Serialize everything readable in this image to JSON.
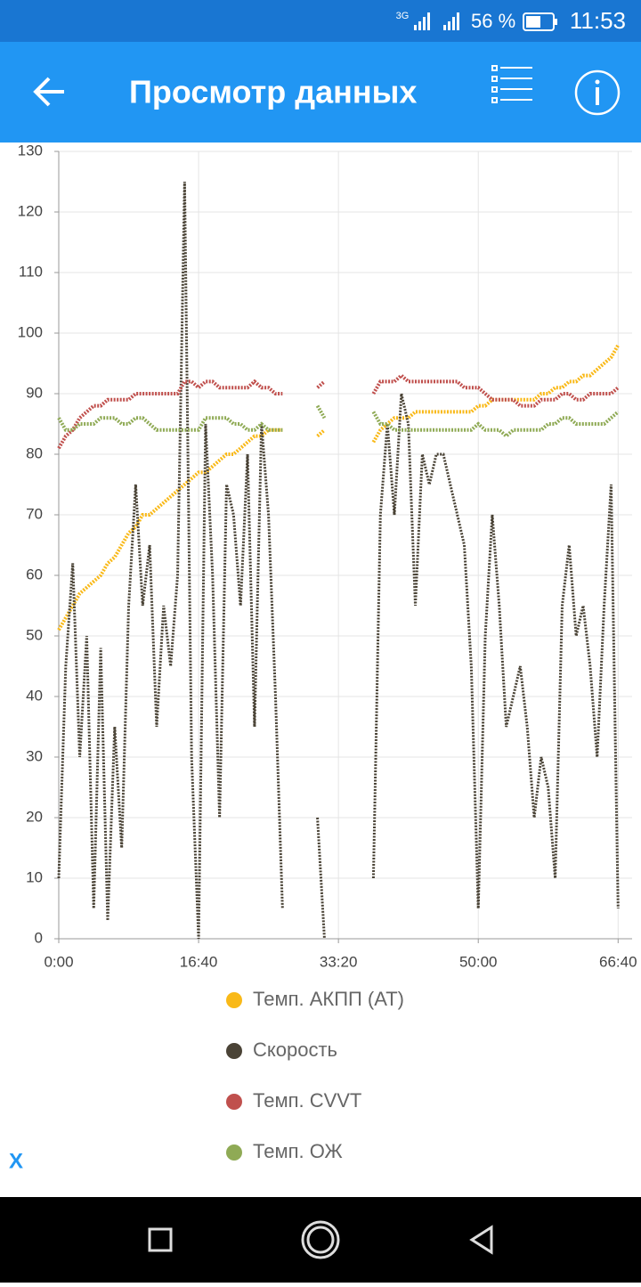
{
  "status_bar": {
    "network": "3G",
    "battery": "56 %",
    "time": "11:53"
  },
  "app_bar": {
    "title": "Просмотр данных"
  },
  "chart_data": {
    "type": "line",
    "x": [
      0,
      50,
      100,
      150,
      200,
      250,
      300,
      350,
      400,
      450,
      500,
      550,
      600,
      650,
      700,
      750,
      800,
      850,
      900,
      950,
      1000,
      1050,
      1100,
      1150,
      1200,
      1250,
      1300,
      1350,
      1400,
      1450,
      1500,
      1550,
      1600,
      1650,
      1700,
      1750,
      1800,
      1850,
      1900,
      1950,
      2000,
      2050,
      2100,
      2150,
      2200,
      2250,
      2300,
      2350,
      2400,
      2450,
      2500,
      2550,
      2600,
      2650,
      2700,
      2750,
      2800,
      2850,
      2900,
      2950,
      3000,
      3050,
      3100,
      3150,
      3200,
      3250,
      3300,
      3350,
      3400,
      3450,
      3500,
      3550,
      3600,
      3650,
      3700,
      3750,
      3800,
      3850,
      3900,
      3950,
      4000
    ],
    "series": [
      {
        "name": "Темп. АКПП (АТ)",
        "color": "#f9b918",
        "values": [
          51,
          53,
          55,
          57,
          58,
          59,
          60,
          62,
          63,
          65,
          67,
          68,
          70,
          70,
          71,
          72,
          73,
          74,
          75,
          76,
          77,
          77,
          78,
          79,
          80,
          80,
          81,
          82,
          83,
          83,
          84,
          84,
          84,
          null,
          null,
          null,
          null,
          83,
          84,
          null,
          null,
          null,
          null,
          null,
          null,
          82,
          84,
          85,
          86,
          86,
          86,
          87,
          87,
          87,
          87,
          87,
          87,
          87,
          87,
          87,
          88,
          88,
          89,
          89,
          89,
          89,
          89,
          89,
          89,
          90,
          90,
          91,
          91,
          92,
          92,
          93,
          93,
          94,
          95,
          96,
          98
        ]
      },
      {
        "name": "Скорость",
        "color": "#4a4336",
        "values": [
          10,
          45,
          62,
          30,
          50,
          5,
          48,
          3,
          35,
          15,
          55,
          75,
          55,
          65,
          35,
          55,
          45,
          60,
          125,
          30,
          0,
          85,
          60,
          20,
          75,
          70,
          55,
          80,
          35,
          85,
          70,
          40,
          5,
          null,
          null,
          null,
          null,
          20,
          0,
          null,
          null,
          null,
          null,
          null,
          null,
          10,
          70,
          85,
          70,
          90,
          85,
          55,
          80,
          75,
          80,
          80,
          75,
          70,
          65,
          45,
          5,
          50,
          70,
          55,
          35,
          40,
          45,
          35,
          20,
          30,
          25,
          10,
          55,
          65,
          50,
          55,
          45,
          30,
          55,
          75,
          5
        ]
      },
      {
        "name": "Темп. CVVT",
        "color": "#c0504d",
        "values": [
          81,
          83,
          84,
          86,
          87,
          88,
          88,
          89,
          89,
          89,
          89,
          90,
          90,
          90,
          90,
          90,
          90,
          90,
          92,
          92,
          91,
          92,
          92,
          91,
          91,
          91,
          91,
          91,
          92,
          91,
          91,
          90,
          90,
          null,
          null,
          null,
          null,
          91,
          92,
          null,
          null,
          null,
          null,
          null,
          null,
          90,
          92,
          92,
          92,
          93,
          92,
          92,
          92,
          92,
          92,
          92,
          92,
          92,
          91,
          91,
          91,
          90,
          89,
          89,
          89,
          89,
          88,
          88,
          88,
          89,
          89,
          89,
          90,
          90,
          89,
          89,
          90,
          90,
          90,
          90,
          91
        ]
      },
      {
        "name": "Темп. ОЖ",
        "color": "#8faa55",
        "values": [
          86,
          84,
          84,
          85,
          85,
          85,
          86,
          86,
          86,
          85,
          85,
          86,
          86,
          85,
          84,
          84,
          84,
          84,
          84,
          84,
          84,
          86,
          86,
          86,
          86,
          85,
          85,
          84,
          84,
          85,
          84,
          84,
          84,
          null,
          null,
          null,
          null,
          88,
          86,
          null,
          null,
          null,
          null,
          null,
          null,
          87,
          85,
          85,
          84,
          84,
          84,
          84,
          84,
          84,
          84,
          84,
          84,
          84,
          84,
          84,
          85,
          84,
          84,
          84,
          83,
          84,
          84,
          84,
          84,
          84,
          85,
          85,
          86,
          86,
          85,
          85,
          85,
          85,
          85,
          86,
          87
        ]
      }
    ],
    "xlim": [
      0,
      4100
    ],
    "xticks": [
      {
        "value": 0,
        "label": "0:00"
      },
      {
        "value": 1000,
        "label": "16:40"
      },
      {
        "value": 2000,
        "label": "33:20"
      },
      {
        "value": 3000,
        "label": "50:00"
      },
      {
        "value": 4000,
        "label": "66:40"
      }
    ],
    "ylim": [
      0,
      130
    ],
    "yticks": [
      0,
      10,
      20,
      30,
      40,
      50,
      60,
      70,
      80,
      90,
      100,
      110,
      120,
      130
    ],
    "grid": true
  },
  "footer": {
    "close": "X"
  }
}
